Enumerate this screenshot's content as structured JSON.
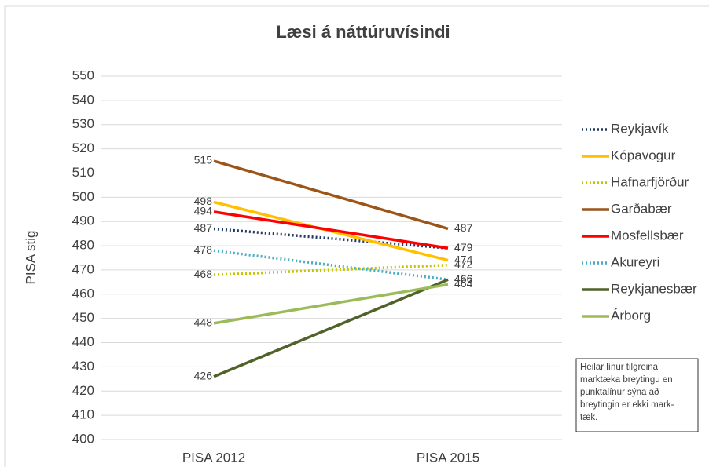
{
  "chart_data": {
    "type": "line",
    "title": "Læsi á náttúruvísindi",
    "y_label": "PISA stig",
    "categories": [
      "PISA 2012",
      "PISA 2015"
    ],
    "series": [
      {
        "name": "Reykjavík",
        "color": "#1f3864",
        "style": "dotted",
        "values": [
          487,
          479
        ]
      },
      {
        "name": "Kópavogur",
        "color": "#ffc000",
        "style": "solid",
        "values": [
          498,
          474
        ]
      },
      {
        "name": "Hafnarfjörður",
        "color": "#c4c400",
        "style": "dotted",
        "values": [
          468,
          472
        ]
      },
      {
        "name": "Garðabær",
        "color": "#9c5518",
        "style": "solid",
        "values": [
          515,
          487
        ]
      },
      {
        "name": "Mosfellsbær",
        "color": "#ff0000",
        "style": "solid",
        "values": [
          494,
          479
        ]
      },
      {
        "name": "Akureyri",
        "color": "#4bacc6",
        "style": "dotted",
        "values": [
          478,
          466
        ]
      },
      {
        "name": "Reykjanesbær",
        "color": "#4f6228",
        "style": "solid",
        "values": [
          426,
          466
        ]
      },
      {
        "name": "Árborg",
        "color": "#9bbb59",
        "style": "solid",
        "values": [
          448,
          464
        ]
      }
    ],
    "ylim": [
      400,
      550
    ],
    "yticks": [
      400,
      410,
      420,
      430,
      440,
      450,
      460,
      470,
      480,
      490,
      500,
      510,
      520,
      530,
      540,
      550
    ],
    "grid": true,
    "legend": "right",
    "annotation": [
      "Heilar línur tilgreina",
      "marktæka breytingu en",
      "punktalínur sýna að",
      "breytingin er ekki mark-",
      "tæk."
    ]
  }
}
